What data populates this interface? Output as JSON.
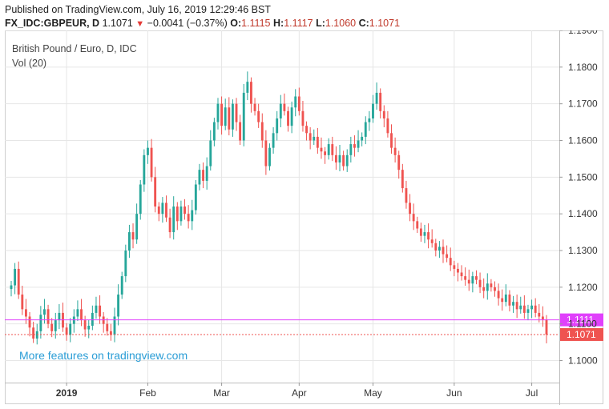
{
  "header": {
    "published": "Published on TradingView.com, July 16, 2019 12:29:46 BST",
    "symbol": "FX_IDC:GBPEUR, D",
    "last": "1.1071",
    "change": "−0.0041 (−0.37%)",
    "o_label": "O:",
    "o": "1.1115",
    "h_label": "H:",
    "h": "1.1117",
    "l_label": "L:",
    "l": "1.1060",
    "c_label": "C:",
    "c": "1.1071"
  },
  "legend": {
    "title": "British Pound / Euro, D, IDC",
    "vol": "Vol (20)"
  },
  "watermark": "More features on tradingview.com",
  "colors": {
    "up": "#26a69a",
    "down": "#ef5350",
    "hline": "#e040fb",
    "price_tag": "#ef5350",
    "grid": "#e6e6e6"
  },
  "chart_data": {
    "type": "candlestick",
    "ylim": [
      1.094,
      1.19
    ],
    "y_ticks": [
      "1.1900",
      "1.1800",
      "1.1700",
      "1.1600",
      "1.1500",
      "1.1400",
      "1.1300",
      "1.1200",
      "1.1100",
      "1.1000"
    ],
    "x_ticks": [
      "2019",
      "Feb",
      "Mar",
      "Apr",
      "May",
      "Jun",
      "Jul"
    ],
    "markers": [
      {
        "label": "1.1111",
        "value": 1.1111,
        "style": "solid"
      },
      {
        "label": "1.1071",
        "value": 1.1071,
        "style": "dotted"
      }
    ],
    "approx_closes": [
      1.1205,
      1.125,
      1.118,
      1.114,
      1.112,
      1.109,
      1.106,
      1.108,
      1.1125,
      1.114,
      1.11,
      1.108,
      1.111,
      1.113,
      1.109,
      1.107,
      1.11,
      1.112,
      1.114,
      1.111,
      1.1085,
      1.1095,
      1.113,
      1.115,
      1.112,
      1.11,
      1.108,
      1.107,
      1.112,
      1.118,
      1.123,
      1.13,
      1.135,
      1.133,
      1.14,
      1.148,
      1.156,
      1.158,
      1.15,
      1.142,
      1.14,
      1.143,
      1.139,
      1.135,
      1.142,
      1.138,
      1.142,
      1.14,
      1.138,
      1.141,
      1.148,
      1.152,
      1.149,
      1.153,
      1.16,
      1.165,
      1.17,
      1.164,
      1.169,
      1.163,
      1.17,
      1.165,
      1.16,
      1.173,
      1.176,
      1.17,
      1.168,
      1.165,
      1.16,
      1.153,
      1.158,
      1.162,
      1.166,
      1.17,
      1.168,
      1.164,
      1.169,
      1.172,
      1.168,
      1.164,
      1.162,
      1.16,
      1.161,
      1.158,
      1.157,
      1.156,
      1.159,
      1.156,
      1.154,
      1.156,
      1.153,
      1.156,
      1.159,
      1.158,
      1.16,
      1.161,
      1.165,
      1.166,
      1.17,
      1.173,
      1.168,
      1.166,
      1.162,
      1.158,
      1.156,
      1.152,
      1.147,
      1.143,
      1.14,
      1.138,
      1.136,
      1.134,
      1.135,
      1.133,
      1.132,
      1.13,
      1.131,
      1.129,
      1.128,
      1.126,
      1.125,
      1.124,
      1.123,
      1.122,
      1.121,
      1.123,
      1.122,
      1.12,
      1.119,
      1.121,
      1.12,
      1.119,
      1.117,
      1.116,
      1.118,
      1.115,
      1.116,
      1.114,
      1.115,
      1.113,
      1.114,
      1.115,
      1.113,
      1.112,
      1.1112,
      1.1071
    ]
  }
}
